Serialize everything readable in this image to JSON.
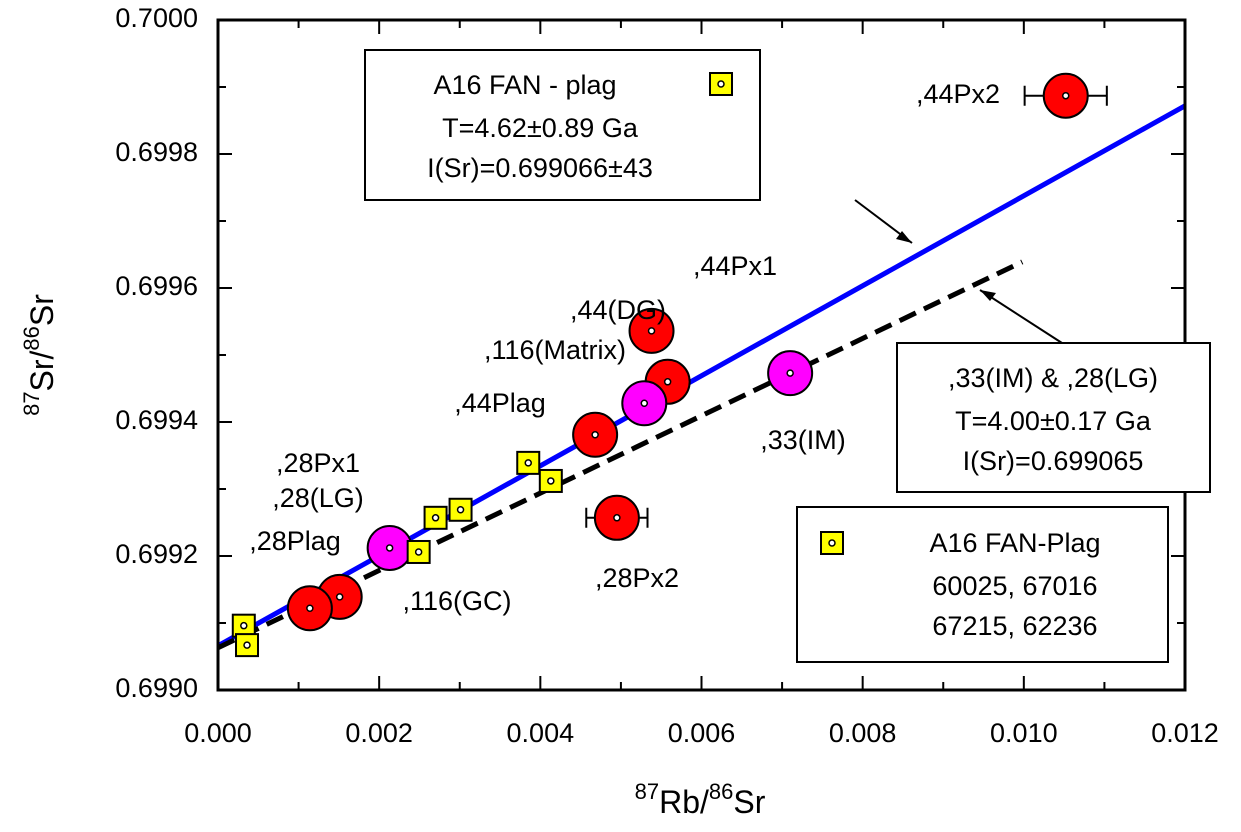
{
  "chart_data": {
    "type": "scatter",
    "x_label": [
      "87",
      "Rb/",
      "86",
      "Sr"
    ],
    "y_label": [
      "87",
      "Sr/",
      "86",
      "Sr"
    ],
    "xlim": [
      0,
      0.012
    ],
    "ylim": [
      0.699,
      0.7
    ],
    "xticks": [
      {
        "value": 0,
        "label": "0.000"
      },
      {
        "value": 0.002,
        "label": "0.002"
      },
      {
        "value": 0.004,
        "label": "0.004"
      },
      {
        "value": 0.006,
        "label": "0.006"
      },
      {
        "value": 0.008,
        "label": "0.008"
      },
      {
        "value": 0.01,
        "label": "0.010"
      },
      {
        "value": 0.012,
        "label": "0.012"
      }
    ],
    "yticks": [
      {
        "value": 0.699,
        "label": "0.6990"
      },
      {
        "value": 0.6992,
        "label": "0.6992"
      },
      {
        "value": 0.6994,
        "label": "0.6994"
      },
      {
        "value": 0.6996,
        "label": "0.6996"
      },
      {
        "value": 0.6998,
        "label": "0.6998"
      },
      {
        "value": 0.7,
        "label": "0.7000"
      }
    ],
    "series": [
      {
        "marker": "circle",
        "color": "#ff0000",
        "x": [
          0.01052,
          0.00538,
          0.00558,
          0.00468,
          0.00495,
          0.00151,
          0.00114
        ],
        "y": [
          0.699887,
          0.699536,
          0.69946,
          0.699381,
          0.699257,
          0.699139,
          0.699122
        ],
        "xerr": [
          0.00051,
          null,
          null,
          null,
          0.00038,
          null,
          null
        ]
      },
      {
        "marker": "circle",
        "color": "#ff00ff",
        "x": [
          0.00529,
          0.0071,
          0.00213
        ],
        "y": [
          0.699428,
          0.699473,
          0.699212
        ]
      },
      {
        "name": "A16 FAN-Plag",
        "marker": "square",
        "color": "#ffff00",
        "x": [
          0.00385,
          0.00413,
          0.0027,
          0.00301,
          0.00249,
          0.00032,
          0.00036
        ],
        "y": [
          0.699339,
          0.699312,
          0.699257,
          0.699269,
          0.699206,
          0.699096,
          0.699067
        ]
      }
    ],
    "lines": [
      {
        "color": "#0000ff",
        "dash": false,
        "x": [
          0,
          0.012
        ],
        "y": [
          0.699066,
          0.699872
        ]
      },
      {
        "color": "#000000",
        "dash": true,
        "x": [
          0,
          0.00998
        ],
        "y": [
          0.699063,
          0.699639
        ]
      }
    ],
    "legend_lines": [
      "60025, 67016",
      "67215, 62236"
    ],
    "isochron_boxes": [
      [
        "A16 FAN - plag",
        "T=4.62±0.89 Ga",
        "I(Sr)=0.699066±43"
      ],
      [
        ",33(IM) & ,28(LG)",
        "T=4.00±0.17 Ga",
        "I(Sr)=0.699065"
      ]
    ],
    "point_labels": [
      ",44Px2",
      ",44Px1",
      ",44(DG)",
      ",116(Matrix)",
      ",44Plag",
      ",33(IM)",
      ",28Px1",
      ",28(LG)",
      ",28Plag",
      ",28Px2",
      ",116(GC)"
    ]
  }
}
